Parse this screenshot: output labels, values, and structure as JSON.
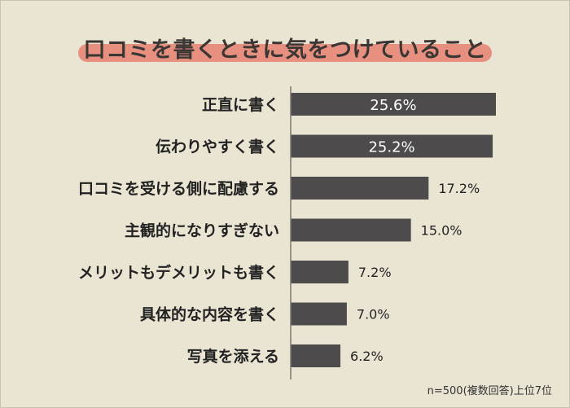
{
  "title": "口コミを書くときに気をつけていること",
  "note": "n=500(複数回答)上位7位",
  "chart_data": {
    "type": "bar",
    "orientation": "horizontal",
    "categories": [
      "正直に書く",
      "伝わりやすく書く",
      "口コミを受ける側に配慮する",
      "主観的になりすぎない",
      "メリットもデメリットも書く",
      "具体的な内容を書く",
      "写真を添える"
    ],
    "values": [
      25.6,
      25.2,
      17.2,
      15.0,
      7.2,
      7.0,
      6.2
    ],
    "value_labels": [
      "25.6%",
      "25.2%",
      "17.2%",
      "15.0%",
      "7.2%",
      "7.0%",
      "6.2%"
    ],
    "label_inside": [
      true,
      true,
      false,
      false,
      false,
      false,
      false
    ],
    "xlim": [
      0,
      25.6
    ],
    "bar_color": "#4d4b4b",
    "accent_color": "#e8907f",
    "grid": false
  }
}
